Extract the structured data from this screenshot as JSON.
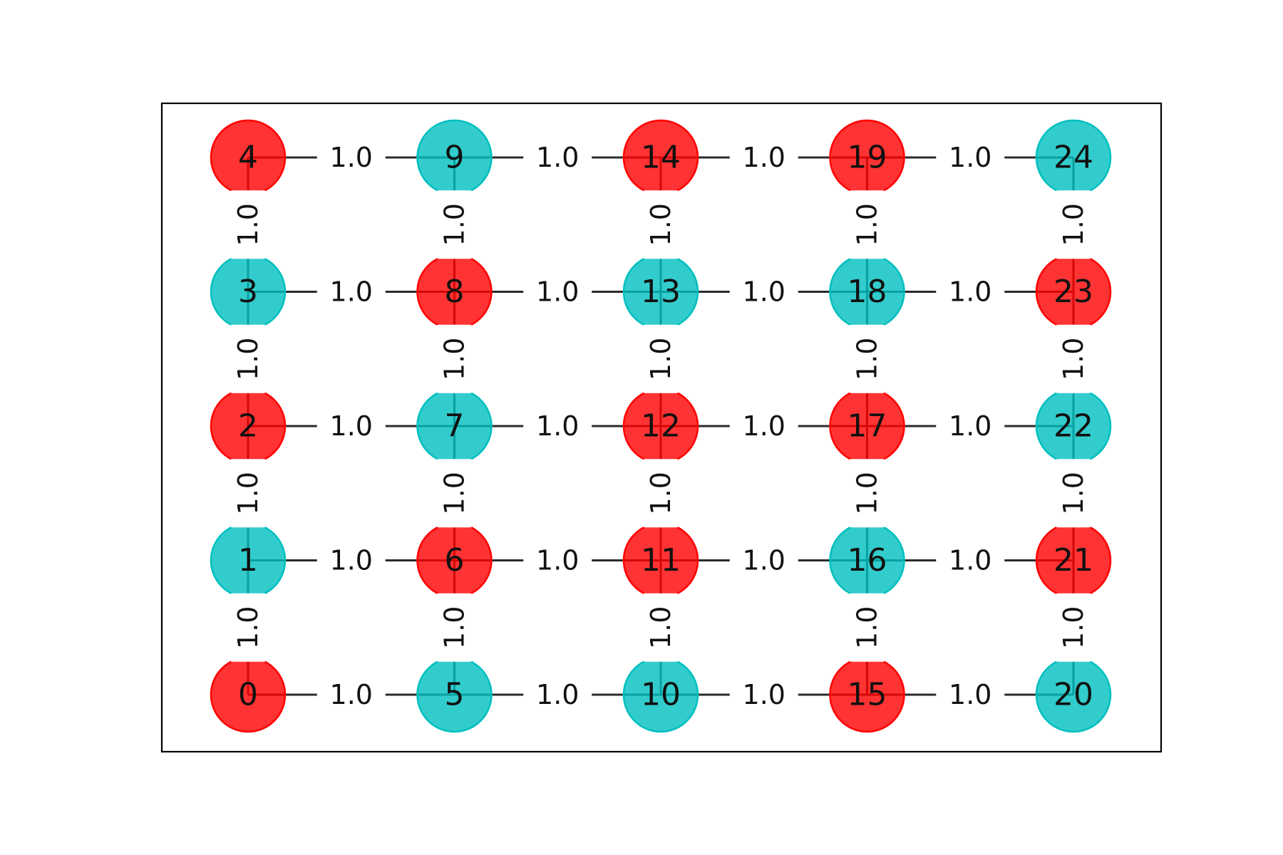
{
  "graph": {
    "colors": {
      "red": "#ff0000",
      "cyan": "#00bfbf",
      "edge": "#2b2b2b"
    },
    "edge_weight_label": "1.0",
    "nodes": [
      {
        "id": 0,
        "label": "0",
        "col": 0,
        "row": 0,
        "color": "red"
      },
      {
        "id": 1,
        "label": "1",
        "col": 0,
        "row": 1,
        "color": "cyan"
      },
      {
        "id": 2,
        "label": "2",
        "col": 0,
        "row": 2,
        "color": "red"
      },
      {
        "id": 3,
        "label": "3",
        "col": 0,
        "row": 3,
        "color": "cyan"
      },
      {
        "id": 4,
        "label": "4",
        "col": 0,
        "row": 4,
        "color": "red"
      },
      {
        "id": 5,
        "label": "5",
        "col": 1,
        "row": 0,
        "color": "cyan"
      },
      {
        "id": 6,
        "label": "6",
        "col": 1,
        "row": 1,
        "color": "red"
      },
      {
        "id": 7,
        "label": "7",
        "col": 1,
        "row": 2,
        "color": "cyan"
      },
      {
        "id": 8,
        "label": "8",
        "col": 1,
        "row": 3,
        "color": "red"
      },
      {
        "id": 9,
        "label": "9",
        "col": 1,
        "row": 4,
        "color": "cyan"
      },
      {
        "id": 10,
        "label": "10",
        "col": 2,
        "row": 0,
        "color": "cyan"
      },
      {
        "id": 11,
        "label": "11",
        "col": 2,
        "row": 1,
        "color": "red"
      },
      {
        "id": 12,
        "label": "12",
        "col": 2,
        "row": 2,
        "color": "red"
      },
      {
        "id": 13,
        "label": "13",
        "col": 2,
        "row": 3,
        "color": "cyan"
      },
      {
        "id": 14,
        "label": "14",
        "col": 2,
        "row": 4,
        "color": "red"
      },
      {
        "id": 15,
        "label": "15",
        "col": 3,
        "row": 0,
        "color": "red"
      },
      {
        "id": 16,
        "label": "16",
        "col": 3,
        "row": 1,
        "color": "cyan"
      },
      {
        "id": 17,
        "label": "17",
        "col": 3,
        "row": 2,
        "color": "red"
      },
      {
        "id": 18,
        "label": "18",
        "col": 3,
        "row": 3,
        "color": "cyan"
      },
      {
        "id": 19,
        "label": "19",
        "col": 3,
        "row": 4,
        "color": "red"
      },
      {
        "id": 20,
        "label": "20",
        "col": 4,
        "row": 0,
        "color": "cyan"
      },
      {
        "id": 21,
        "label": "21",
        "col": 4,
        "row": 1,
        "color": "red"
      },
      {
        "id": 22,
        "label": "22",
        "col": 4,
        "row": 2,
        "color": "cyan"
      },
      {
        "id": 23,
        "label": "23",
        "col": 4,
        "row": 3,
        "color": "red"
      },
      {
        "id": 24,
        "label": "24",
        "col": 4,
        "row": 4,
        "color": "cyan"
      }
    ],
    "edges": [
      [
        0,
        1
      ],
      [
        1,
        2
      ],
      [
        2,
        3
      ],
      [
        3,
        4
      ],
      [
        5,
        6
      ],
      [
        6,
        7
      ],
      [
        7,
        8
      ],
      [
        8,
        9
      ],
      [
        10,
        11
      ],
      [
        11,
        12
      ],
      [
        12,
        13
      ],
      [
        13,
        14
      ],
      [
        15,
        16
      ],
      [
        16,
        17
      ],
      [
        17,
        18
      ],
      [
        18,
        19
      ],
      [
        20,
        21
      ],
      [
        21,
        22
      ],
      [
        22,
        23
      ],
      [
        23,
        24
      ],
      [
        0,
        5
      ],
      [
        5,
        10
      ],
      [
        10,
        15
      ],
      [
        15,
        20
      ],
      [
        1,
        6
      ],
      [
        6,
        11
      ],
      [
        11,
        16
      ],
      [
        16,
        21
      ],
      [
        2,
        7
      ],
      [
        7,
        12
      ],
      [
        12,
        17
      ],
      [
        17,
        22
      ],
      [
        3,
        8
      ],
      [
        8,
        13
      ],
      [
        13,
        18
      ],
      [
        18,
        23
      ],
      [
        4,
        9
      ],
      [
        9,
        14
      ],
      [
        14,
        19
      ],
      [
        19,
        24
      ]
    ]
  }
}
